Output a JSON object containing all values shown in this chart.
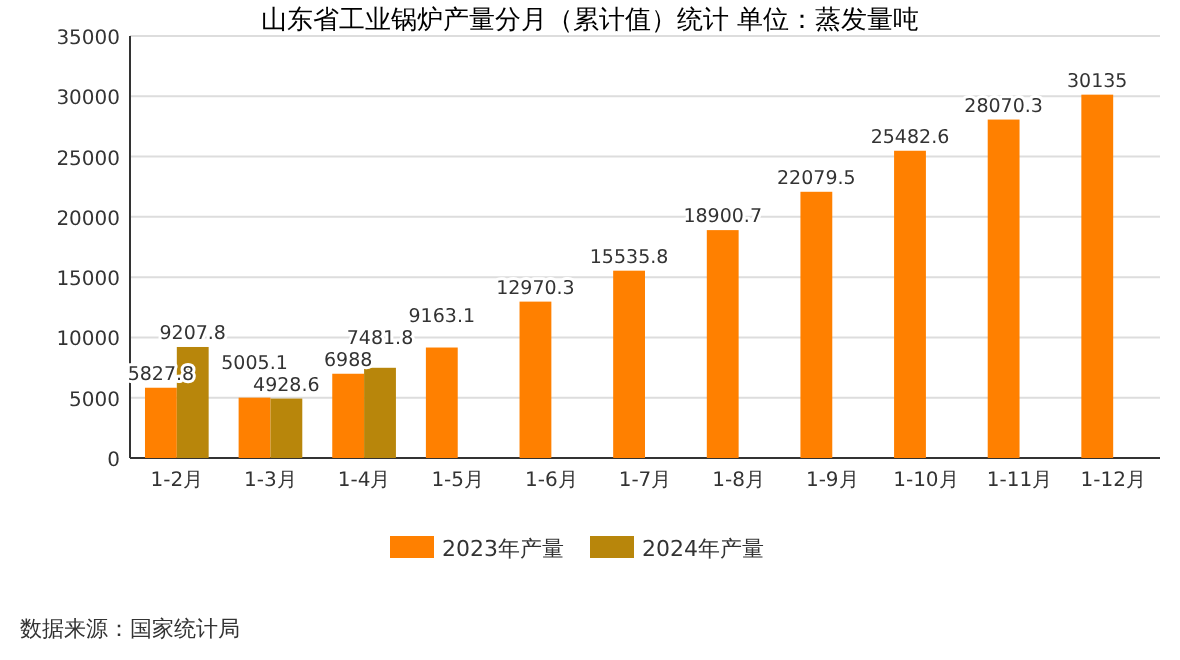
{
  "chart_data": {
    "type": "bar",
    "title": "山东省工业锅炉产量分月（累计值）统计 单位：蒸发量吨",
    "categories": [
      "1-2月",
      "1-3月",
      "1-4月",
      "1-5月",
      "1-6月",
      "1-7月",
      "1-8月",
      "1-9月",
      "1-10月",
      "1-11月",
      "1-12月"
    ],
    "series": [
      {
        "name": "2023年产量",
        "color": "#ff8000",
        "values": [
          5827.8,
          5005.1,
          6988,
          9163.1,
          12970.3,
          15535.8,
          18900.7,
          22079.5,
          25482.6,
          28070.3,
          30135
        ]
      },
      {
        "name": "2024年产量",
        "color": "#b8860b",
        "values": [
          9207.8,
          4928.6,
          7481.8,
          null,
          null,
          null,
          null,
          null,
          null,
          null,
          null
        ]
      }
    ],
    "ylim": [
      0,
      35000
    ],
    "yticks": [
      0,
      5000,
      10000,
      15000,
      20000,
      25000,
      30000,
      35000
    ],
    "grid": "y",
    "legend": "bottom",
    "data_labels": true,
    "annotations": [
      "数据来源：国家统计局"
    ]
  }
}
